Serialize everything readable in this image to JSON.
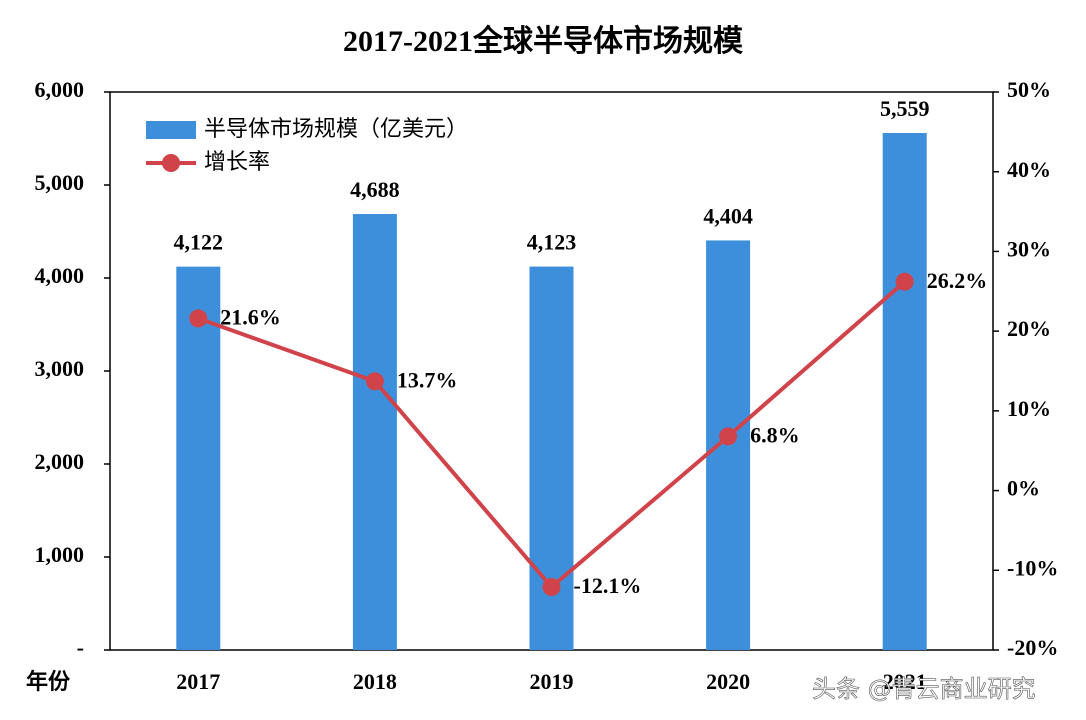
{
  "chart_data": {
    "type": "bar-line",
    "title": "2017-2021全球半导体市场规模",
    "x_label": "年份",
    "categories": [
      "2017",
      "2018",
      "2019",
      "2020",
      "2021"
    ],
    "series": [
      {
        "name": "半导体市场规模（亿美元）",
        "type": "bar",
        "color": "#3d8fdb",
        "values": [
          4122,
          4688,
          4123,
          4404,
          5559
        ],
        "value_labels": [
          "4,122",
          "4,688",
          "4,123",
          "4,404",
          "5,559"
        ]
      },
      {
        "name": "增长率",
        "type": "line",
        "axis": "y2",
        "color": "#d0434a",
        "values": [
          21.6,
          13.7,
          -12.1,
          6.8,
          26.2
        ],
        "value_labels": [
          "21.6%",
          "13.7%",
          "-12.1%",
          "6.8%",
          "26.2%"
        ]
      }
    ],
    "ylim": [
      0,
      6000
    ],
    "yticks": [
      {
        "value": 0,
        "label": "-"
      },
      {
        "value": 1000,
        "label": "1,000"
      },
      {
        "value": 2000,
        "label": "2,000"
      },
      {
        "value": 3000,
        "label": "3,000"
      },
      {
        "value": 4000,
        "label": "4,000"
      },
      {
        "value": 5000,
        "label": "5,000"
      },
      {
        "value": 6000,
        "label": "6,000"
      }
    ],
    "y2lim": [
      -20,
      50
    ],
    "y2ticks": [
      {
        "value": -20,
        "label": "-20%"
      },
      {
        "value": -10,
        "label": "-10%"
      },
      {
        "value": 0,
        "label": "0%"
      },
      {
        "value": 10,
        "label": "10%"
      },
      {
        "value": 20,
        "label": "20%"
      },
      {
        "value": 30,
        "label": "30%"
      },
      {
        "value": 40,
        "label": "40%"
      },
      {
        "value": 50,
        "label": "50%"
      }
    ],
    "legend": "upper left"
  },
  "watermark": "头条 @青云商业研究"
}
